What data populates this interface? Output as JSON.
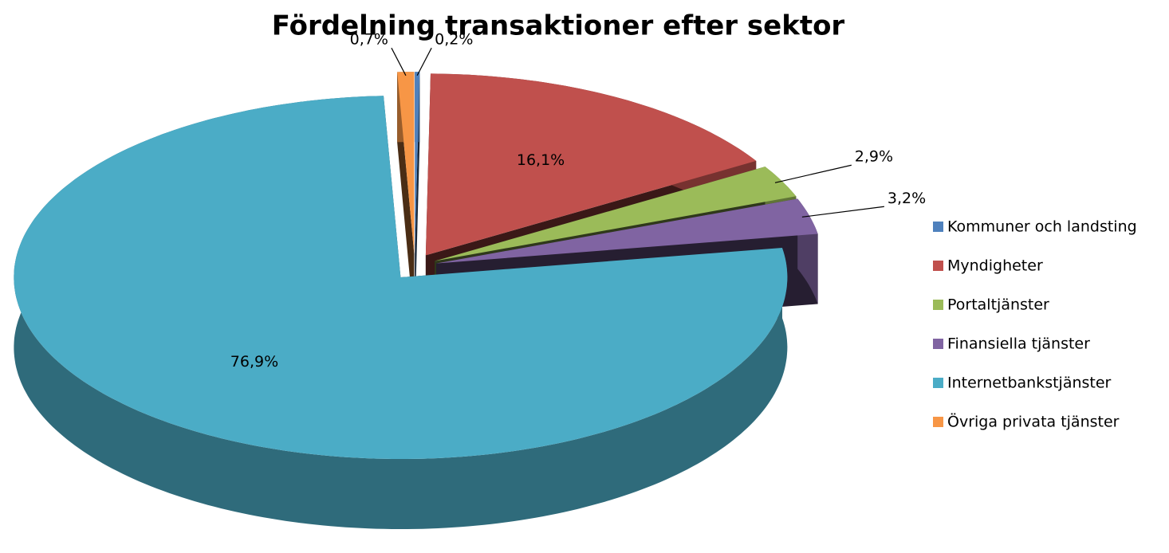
{
  "chart_data": {
    "type": "pie3d",
    "title": "Fördelning transaktioner efter sektor",
    "categories": [
      "Kommuner och landsting",
      "Myndigheter",
      "Portaltjänster",
      "Finansiella tjänster",
      "Internetbankstjänster",
      "Övriga privata tjänster"
    ],
    "values": [
      0.2,
      16.1,
      2.9,
      3.2,
      76.9,
      0.7
    ],
    "value_labels": [
      "0,2%",
      "16,1%",
      "2,9%",
      "3,2%",
      "76,9%",
      "0,7%"
    ],
    "colors": [
      "#4f81bd",
      "#c0504d",
      "#9bbb59",
      "#8064a2",
      "#4bacc6",
      "#f79646"
    ]
  }
}
